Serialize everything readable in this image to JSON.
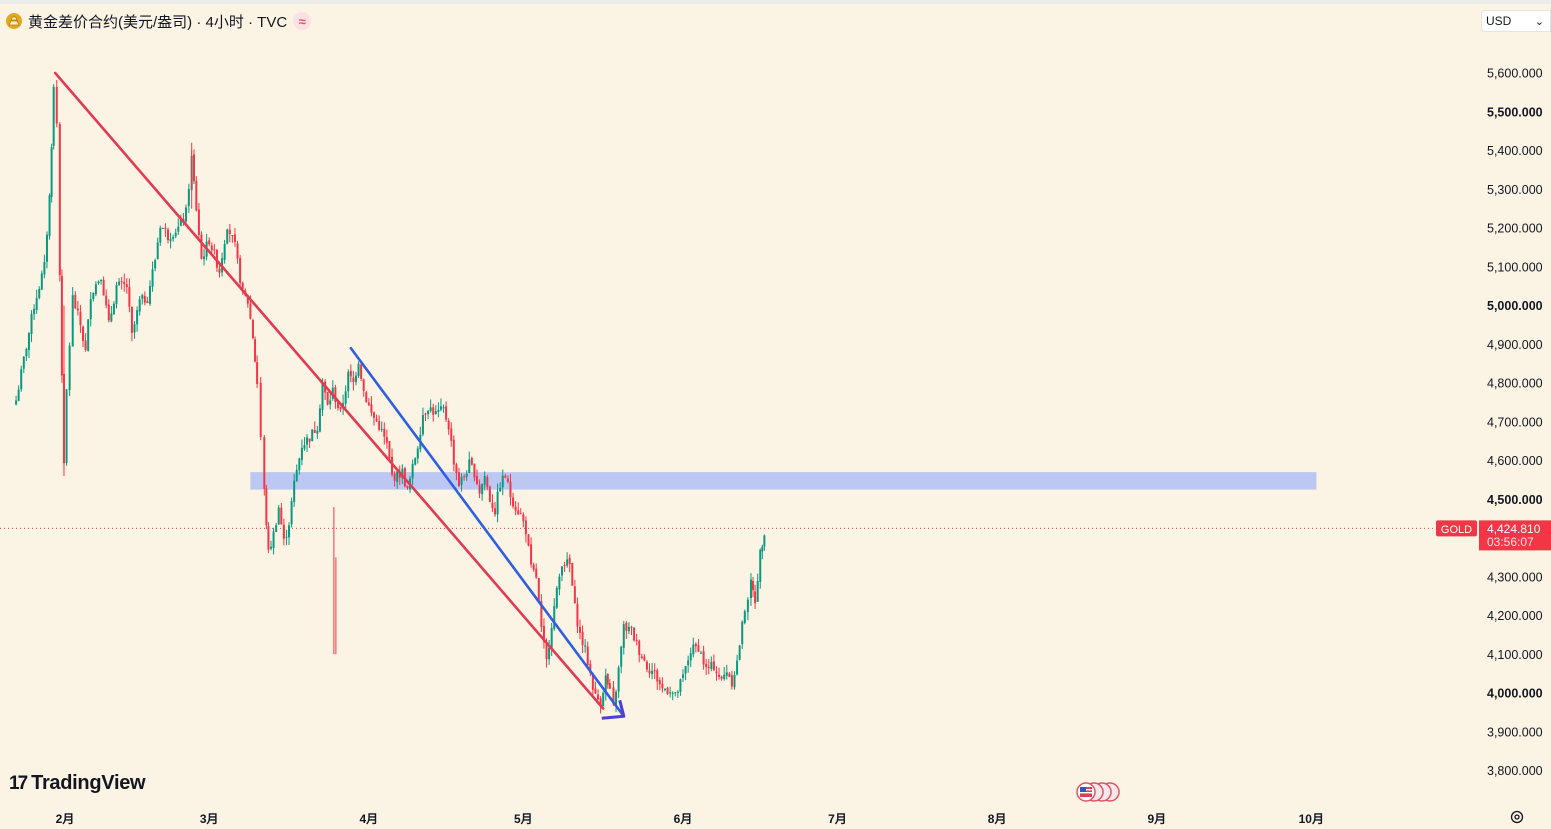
{
  "header": {
    "title": "黄金差价合约(美元/盎司) · 4小时 · TVC",
    "coin_icon": "gold-coin-icon",
    "compare_icon": "≈"
  },
  "currency": {
    "value": "USD",
    "arrow": "⌄"
  },
  "branding": {
    "logo_mark": "17",
    "logo_text": "TradingView"
  },
  "price_tag": {
    "symbol": "GOLD",
    "price": "4,424.810",
    "countdown": "03:56:07"
  },
  "colors": {
    "background": "#fbf3e4",
    "up_candle": "#089981",
    "down_candle": "#f23645",
    "red_trendline": "#e23a4f",
    "blue_trendline": "#2f5fe0",
    "zone": "#b9c5f2",
    "price_tag": "#f23645"
  },
  "chart_data": {
    "type": "candlestick",
    "symbol": "GOLD",
    "interval": "4小时",
    "ylim": [
      3750,
      5700
    ],
    "y_ticks": [
      {
        "label": "3,800.000",
        "value": 3800,
        "bold": false
      },
      {
        "label": "3,900.000",
        "value": 3900,
        "bold": false
      },
      {
        "label": "4,000.000",
        "value": 4000,
        "bold": true
      },
      {
        "label": "4,100.000",
        "value": 4100,
        "bold": false
      },
      {
        "label": "4,200.000",
        "value": 4200,
        "bold": false
      },
      {
        "label": "4,300.000",
        "value": 4300,
        "bold": false
      },
      {
        "label": "4,500.000",
        "value": 4500,
        "bold": true
      },
      {
        "label": "4,600.000",
        "value": 4600,
        "bold": false
      },
      {
        "label": "4,700.000",
        "value": 4700,
        "bold": false
      },
      {
        "label": "4,800.000",
        "value": 4800,
        "bold": false
      },
      {
        "label": "4,900.000",
        "value": 4900,
        "bold": false
      },
      {
        "label": "5,000.000",
        "value": 5000,
        "bold": true
      },
      {
        "label": "5,100.000",
        "value": 5100,
        "bold": false
      },
      {
        "label": "5,200.000",
        "value": 5200,
        "bold": false
      },
      {
        "label": "5,300.000",
        "value": 5300,
        "bold": false
      },
      {
        "label": "5,400.000",
        "value": 5400,
        "bold": false
      },
      {
        "label": "5,500.000",
        "value": 5500,
        "bold": true
      },
      {
        "label": "5,600.000",
        "value": 5600,
        "bold": false
      }
    ],
    "x_ticks": [
      {
        "label": "2月",
        "day": 0
      },
      {
        "label": "3月",
        "day": 28
      },
      {
        "label": "4月",
        "day": 59
      },
      {
        "label": "5月",
        "day": 89
      },
      {
        "label": "6月",
        "day": 120
      },
      {
        "label": "7月",
        "day": 150
      },
      {
        "label": "8月",
        "day": 181
      },
      {
        "label": "9月",
        "day": 212
      },
      {
        "label": "10月",
        "day": 242
      }
    ],
    "path_points": [
      [
        -10,
        4720
      ],
      [
        -8,
        4860
      ],
      [
        -6,
        5000
      ],
      [
        -4,
        5100
      ],
      [
        -3,
        5280
      ],
      [
        -2.2,
        5560
      ],
      [
        -1.6,
        5470
      ],
      [
        -1,
        5080
      ],
      [
        -0.2,
        4580
      ],
      [
        0.3,
        4780
      ],
      [
        1.5,
        5020
      ],
      [
        3,
        4950
      ],
      [
        4,
        4880
      ],
      [
        5,
        5030
      ],
      [
        7,
        5080
      ],
      [
        8.5,
        4950
      ],
      [
        10,
        5050
      ],
      [
        12,
        5050
      ],
      [
        13,
        4920
      ],
      [
        14.5,
        5010
      ],
      [
        16,
        5020
      ],
      [
        17.5,
        5120
      ],
      [
        18.5,
        5210
      ],
      [
        20,
        5180
      ],
      [
        22,
        5200
      ],
      [
        23.5,
        5240
      ],
      [
        24.6,
        5380
      ],
      [
        25.5,
        5250
      ],
      [
        26.5,
        5120
      ],
      [
        28,
        5170
      ],
      [
        30,
        5090
      ],
      [
        31.5,
        5210
      ],
      [
        33,
        5150
      ],
      [
        34.5,
        5030
      ],
      [
        35.5,
        5010
      ],
      [
        36.5,
        4920
      ],
      [
        37.3,
        4800
      ],
      [
        38,
        4660
      ],
      [
        38.7,
        4520
      ],
      [
        39.5,
        4360
      ],
      [
        40.5,
        4410
      ],
      [
        41.5,
        4480
      ],
      [
        42.5,
        4390
      ],
      [
        43.5,
        4440
      ],
      [
        44.5,
        4540
      ],
      [
        46,
        4640
      ],
      [
        47.5,
        4660
      ],
      [
        49,
        4690
      ],
      [
        50,
        4800
      ],
      [
        51,
        4740
      ],
      [
        52,
        4780
      ],
      [
        53.5,
        4720
      ],
      [
        55,
        4820
      ],
      [
        56,
        4800
      ],
      [
        57,
        4860
      ],
      [
        58,
        4780
      ],
      [
        59.5,
        4720
      ],
      [
        61,
        4690
      ],
      [
        62.5,
        4640
      ],
      [
        63.5,
        4560
      ],
      [
        64.5,
        4560
      ],
      [
        65.5,
        4570
      ],
      [
        66.5,
        4520
      ],
      [
        67.5,
        4580
      ],
      [
        68.5,
        4640
      ],
      [
        69.5,
        4720
      ],
      [
        70.5,
        4740
      ],
      [
        72,
        4720
      ],
      [
        73.5,
        4730
      ],
      [
        74.5,
        4690
      ],
      [
        75.5,
        4600
      ],
      [
        76.5,
        4540
      ],
      [
        77.5,
        4560
      ],
      [
        78.5,
        4590
      ],
      [
        79.5,
        4570
      ],
      [
        80.5,
        4520
      ],
      [
        81.5,
        4560
      ],
      [
        82.5,
        4500
      ],
      [
        83.5,
        4470
      ],
      [
        84.5,
        4540
      ],
      [
        85.5,
        4560
      ],
      [
        86.5,
        4510
      ],
      [
        87.5,
        4480
      ],
      [
        88.5,
        4460
      ],
      [
        89.5,
        4420
      ],
      [
        90.5,
        4320
      ],
      [
        91.5,
        4300
      ],
      [
        92.5,
        4160
      ],
      [
        93.5,
        4080
      ],
      [
        94.5,
        4180
      ],
      [
        95.5,
        4260
      ],
      [
        96.5,
        4340
      ],
      [
        98,
        4330
      ],
      [
        99,
        4220
      ],
      [
        100,
        4150
      ],
      [
        101,
        4110
      ],
      [
        102,
        4050
      ],
      [
        103,
        3990
      ],
      [
        104,
        3980
      ],
      [
        105,
        4040
      ],
      [
        105.8,
        4000
      ],
      [
        106.5,
        3960
      ],
      [
        107.5,
        4060
      ],
      [
        108.5,
        4170
      ],
      [
        110,
        4160
      ],
      [
        111.5,
        4110
      ],
      [
        113,
        4070
      ],
      [
        114.5,
        4050
      ],
      [
        116,
        4010
      ],
      [
        117.5,
        4010
      ],
      [
        118.5,
        3990
      ],
      [
        120,
        4040
      ],
      [
        121.5,
        4110
      ],
      [
        123,
        4120
      ],
      [
        124.5,
        4060
      ],
      [
        126,
        4070
      ],
      [
        127.5,
        4030
      ],
      [
        128.5,
        4060
      ],
      [
        129.5,
        4030
      ],
      [
        130.5,
        4080
      ],
      [
        132,
        4220
      ],
      [
        133.2,
        4280
      ],
      [
        134,
        4240
      ],
      [
        135,
        4360
      ],
      [
        135.8,
        4420
      ]
    ],
    "last_price": 4424.81,
    "trendlines": [
      {
        "color": "red",
        "from": [
          -1.9,
          5600
        ],
        "to": [
          104.5,
          3960
        ]
      },
      {
        "color": "blue",
        "from": [
          55.5,
          4890
        ],
        "to": [
          108.5,
          3940
        ],
        "arrow": true
      }
    ],
    "zone": {
      "from_day": 36,
      "to_day": 243,
      "low": 4525,
      "high": 4570
    }
  }
}
